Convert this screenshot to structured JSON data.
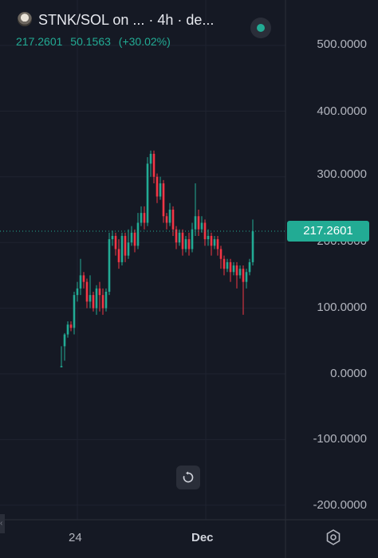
{
  "header": {
    "title": "STNK/SOL on ... · 4h · de...",
    "avatar_icon": "token-avatar-icon",
    "status_color": "#22ab94"
  },
  "ohlc": {
    "price": "217.2601",
    "change": "50.1563",
    "change_pct": "(+30.02%)"
  },
  "price_tag": "217.2601",
  "colors": {
    "up": "#22ab94",
    "down": "#f23645",
    "background": "#151924"
  },
  "chart_data": {
    "type": "candlestick",
    "y_ticks": [
      "500.0000",
      "400.0000",
      "300.0000",
      "200.0000",
      "100.0000",
      "0.0000",
      "-100.0000",
      "-200.0000"
    ],
    "x_ticks": [
      "24",
      "Dec"
    ],
    "ylim": [
      -220,
      540
    ],
    "last_price": 217.2601,
    "candles": [
      [
        10,
        12,
        12,
        42
      ],
      [
        42,
        60,
        20,
        62
      ],
      [
        60,
        75,
        55,
        80
      ],
      [
        75,
        70,
        65,
        80
      ],
      [
        70,
        120,
        60,
        125
      ],
      [
        120,
        130,
        110,
        140
      ],
      [
        130,
        150,
        120,
        175
      ],
      [
        150,
        140,
        130,
        155
      ],
      [
        140,
        110,
        100,
        145
      ],
      [
        110,
        120,
        100,
        150
      ],
      [
        120,
        100,
        95,
        125
      ],
      [
        100,
        130,
        90,
        135
      ],
      [
        130,
        120,
        95,
        140
      ],
      [
        120,
        100,
        90,
        130
      ],
      [
        100,
        125,
        95,
        130
      ],
      [
        125,
        205,
        120,
        215
      ],
      [
        205,
        210,
        195,
        218
      ],
      [
        210,
        190,
        180,
        215
      ],
      [
        190,
        170,
        160,
        205
      ],
      [
        170,
        210,
        165,
        215
      ],
      [
        210,
        180,
        170,
        215
      ],
      [
        180,
        200,
        175,
        220
      ],
      [
        200,
        215,
        195,
        225
      ],
      [
        215,
        195,
        185,
        220
      ],
      [
        195,
        230,
        190,
        245
      ],
      [
        230,
        245,
        225,
        255
      ],
      [
        245,
        230,
        220,
        255
      ],
      [
        230,
        320,
        225,
        330
      ],
      [
        320,
        335,
        300,
        340
      ],
      [
        335,
        300,
        290,
        340
      ],
      [
        300,
        270,
        260,
        305
      ],
      [
        270,
        290,
        265,
        300
      ],
      [
        290,
        240,
        230,
        295
      ],
      [
        240,
        230,
        220,
        245
      ],
      [
        230,
        250,
        225,
        260
      ],
      [
        250,
        220,
        210,
        255
      ],
      [
        220,
        200,
        190,
        225
      ],
      [
        200,
        215,
        195,
        220
      ],
      [
        215,
        190,
        180,
        220
      ],
      [
        190,
        205,
        185,
        210
      ],
      [
        205,
        190,
        180,
        215
      ],
      [
        190,
        220,
        185,
        230
      ],
      [
        220,
        240,
        210,
        290
      ],
      [
        240,
        220,
        210,
        250
      ],
      [
        220,
        230,
        215,
        240
      ],
      [
        230,
        205,
        195,
        235
      ],
      [
        205,
        210,
        195,
        220
      ],
      [
        210,
        195,
        180,
        215
      ],
      [
        195,
        205,
        190,
        210
      ],
      [
        205,
        190,
        180,
        210
      ],
      [
        190,
        175,
        160,
        195
      ],
      [
        175,
        160,
        150,
        180
      ],
      [
        160,
        170,
        155,
        175
      ],
      [
        170,
        155,
        140,
        175
      ],
      [
        155,
        165,
        150,
        170
      ],
      [
        165,
        150,
        130,
        170
      ],
      [
        150,
        160,
        145,
        165
      ],
      [
        160,
        140,
        90,
        165
      ],
      [
        140,
        155,
        130,
        160
      ],
      [
        155,
        170,
        150,
        175
      ],
      [
        170,
        217,
        165,
        235
      ]
    ]
  }
}
